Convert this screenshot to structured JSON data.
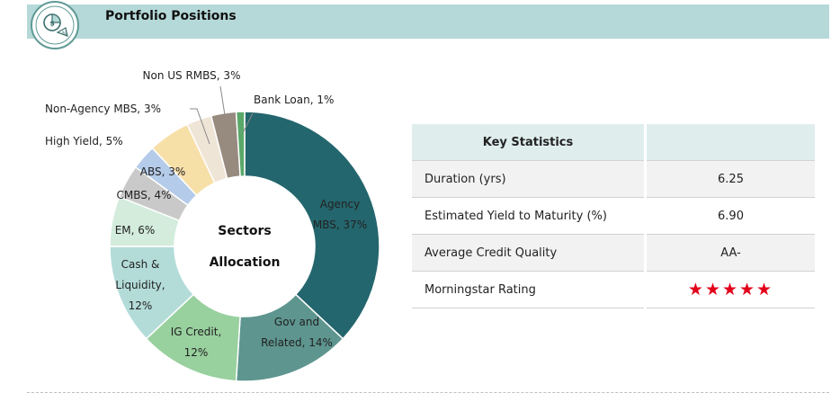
{
  "header": {
    "title": "Portfolio Positions",
    "icon": "money-pie-icon",
    "accent": "#b5d9d8"
  },
  "chart_data": {
    "type": "pie",
    "variant": "donut",
    "center_label": [
      "Sectors",
      "Allocation"
    ],
    "slices": [
      {
        "name": "Agency MBS",
        "value": 37,
        "color": "#24666d",
        "label_lines": [
          "Agency",
          "MBS, 37%"
        ]
      },
      {
        "name": "Gov and Related",
        "value": 14,
        "color": "#5e958f",
        "label_lines": [
          "Gov and",
          "Related, 14%"
        ]
      },
      {
        "name": "IG Credit",
        "value": 12,
        "color": "#98d09e",
        "label_lines": [
          "IG Credit,",
          "12%"
        ]
      },
      {
        "name": "Cash & Liquidity",
        "value": 12,
        "color": "#b3dcd9",
        "label_lines": [
          "Cash &",
          "Liquidity,",
          "12%"
        ]
      },
      {
        "name": "EM",
        "value": 6,
        "color": "#d3ecdc",
        "label_lines": [
          "EM, 6%"
        ]
      },
      {
        "name": "CMBS",
        "value": 4,
        "color": "#c9c9c9",
        "label_lines": [
          "CMBS, 4%"
        ]
      },
      {
        "name": "ABS",
        "value": 3,
        "color": "#b4cbe9",
        "label_lines": [
          "ABS, 3%"
        ]
      },
      {
        "name": "High Yield",
        "value": 5,
        "color": "#f7dfa8",
        "label_lines": [
          "High Yield, 5%"
        ]
      },
      {
        "name": "Non-Agency MBS",
        "value": 3,
        "color": "#efe5d7",
        "label_lines": [
          "Non-Agency MBS, 3%"
        ]
      },
      {
        "name": "Non US RMBS",
        "value": 3,
        "color": "#978a7f",
        "label_lines": [
          "Non US RMBS, 3%"
        ]
      },
      {
        "name": "Bank Loan",
        "value": 1,
        "color": "#5aa86a",
        "label_lines": [
          "Bank Loan, 1%"
        ]
      }
    ]
  },
  "key_statistics": {
    "header": "Key Statistics",
    "rows": [
      {
        "label": "Duration (yrs)",
        "value": "6.25"
      },
      {
        "label": "Estimated Yield to Maturity (%)",
        "value": "6.90"
      },
      {
        "label": "Average Credit Quality",
        "value": "AA-"
      },
      {
        "label": "Morningstar Rating",
        "value": "★★★★★",
        "value_color": "#e3001b"
      }
    ]
  }
}
